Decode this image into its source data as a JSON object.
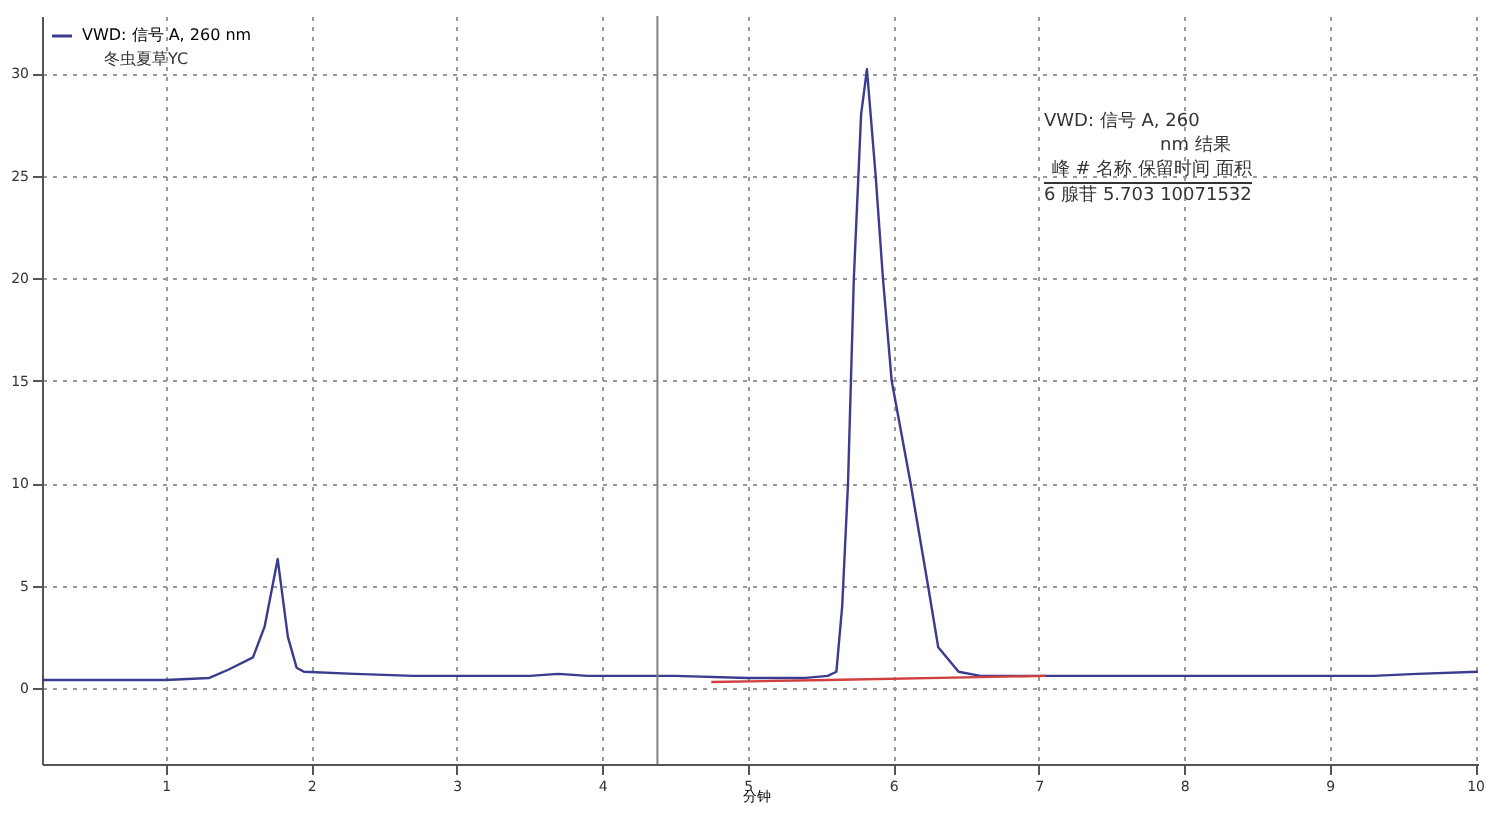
{
  "chart_data": {
    "type": "line",
    "xlabel": "分钟",
    "xlim": [
      0.15,
      10.02
    ],
    "ylim": [
      -3.7,
      32.8
    ],
    "xticks": [
      1,
      2,
      3,
      4,
      5,
      6,
      7,
      8,
      9,
      10
    ],
    "yticks": [
      0,
      5,
      10,
      15,
      20,
      25,
      30
    ],
    "grid": true,
    "legend": "top left",
    "line_style": "solid",
    "marker": "none",
    "annotations": [
      "冬虫夏草YC",
      "VWD: 信号 A, 260",
      "nm 结果",
      "峰 # 名称 保留时间 面积",
      "6 腺苷 5.703 10071532"
    ],
    "ref_lines": [
      {
        "axis": "x",
        "value": 4.38,
        "color": "#808080"
      }
    ],
    "series": [
      {
        "name": "VWD: 信号 A, 260 nm",
        "color": "#3b3b8f",
        "x": [
          0.15,
          1.0,
          1.3,
          1.43,
          1.6,
          1.68,
          1.77,
          1.84,
          1.9,
          1.95,
          2.3,
          2.7,
          3.5,
          3.7,
          3.9,
          4.5,
          5.0,
          5.4,
          5.55,
          5.61,
          5.65,
          5.69,
          5.73,
          5.78,
          5.82,
          5.88,
          5.93,
          5.99,
          6.12,
          6.24,
          6.31,
          6.45,
          6.6,
          7.0,
          8.0,
          9.3,
          9.6,
          10.02
        ],
        "values": [
          0.4,
          0.4,
          0.5,
          0.9,
          1.5,
          3.0,
          6.3,
          2.5,
          1.0,
          0.8,
          0.7,
          0.6,
          0.6,
          0.7,
          0.6,
          0.6,
          0.5,
          0.5,
          0.6,
          0.8,
          4.0,
          10,
          20,
          28,
          30.2,
          25,
          20,
          15,
          10,
          5,
          2,
          0.8,
          0.6,
          0.6,
          0.6,
          0.6,
          0.7,
          0.8
        ]
      },
      {
        "color": "#d04040",
        "x": [
          4.75,
          5.55,
          7.05
        ],
        "values": [
          0.3,
          0.4,
          0.6
        ]
      }
    ]
  }
}
